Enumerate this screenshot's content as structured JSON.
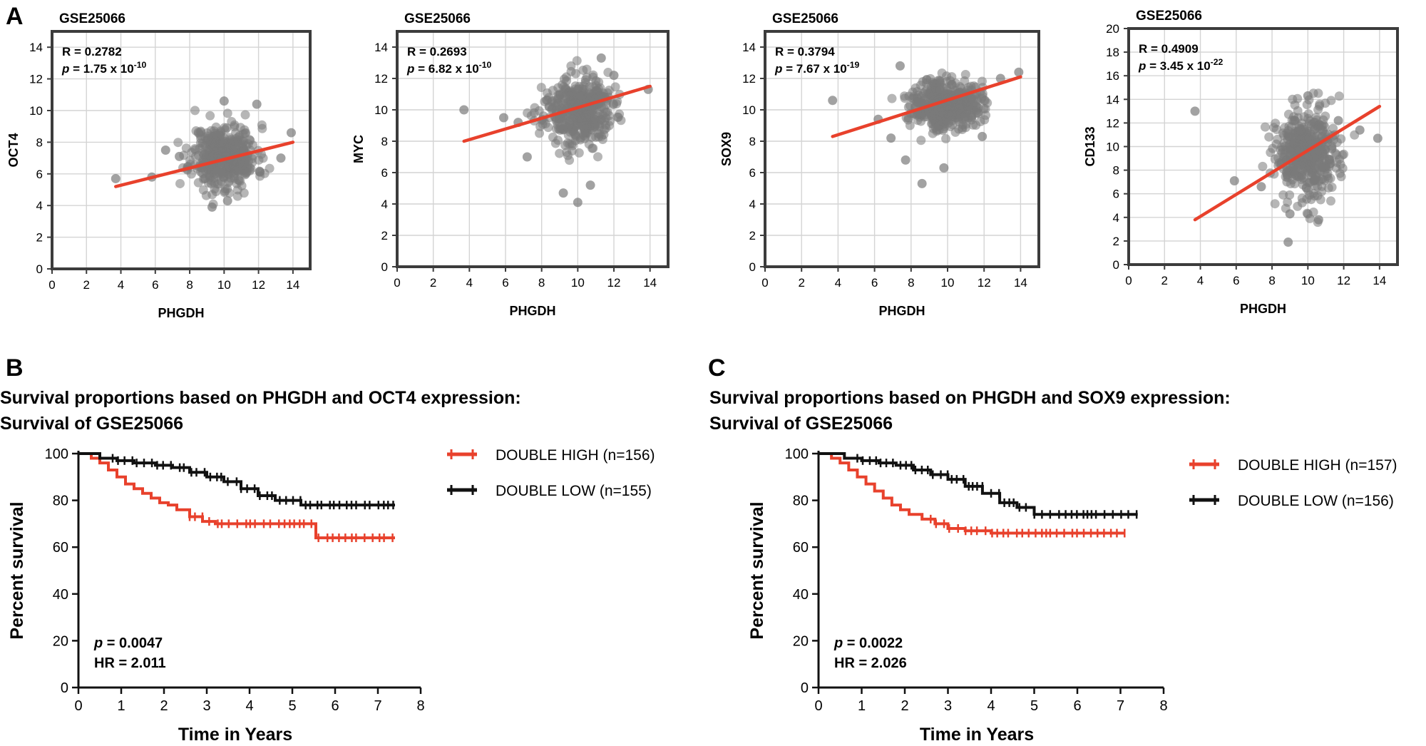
{
  "colors": {
    "red": "#e8412c",
    "black": "#111111",
    "dots": "#7a7a7a",
    "grid": "#d4d4d4",
    "frame": "#3c3c3c"
  },
  "panel_labels": {
    "a": "A",
    "b": "B",
    "c": "C"
  },
  "chart_data": [
    {
      "type": "scatter",
      "id": "a1",
      "title": "GSE25066",
      "xlabel": "PHGDH",
      "ylabel": "OCT4",
      "xlim": [
        0,
        15
      ],
      "ylim": [
        0,
        15
      ],
      "xticks": [
        0,
        2,
        4,
        6,
        8,
        10,
        12,
        14
      ],
      "yticks": [
        0,
        2,
        4,
        6,
        8,
        10,
        12,
        14
      ],
      "stats": {
        "r": "R = 0.2782",
        "p_label": "p",
        "p_text": " = 1.75 x 10",
        "p_exp": "-10"
      },
      "cloud": {
        "x_center": 10.0,
        "y_center": 7.1,
        "x_sd": 0.95,
        "y_sd": 1.0,
        "n": 420,
        "seed": 11
      },
      "outliers": [
        [
          3.7,
          5.7
        ],
        [
          5.8,
          5.8
        ],
        [
          6.6,
          7.5
        ],
        [
          13.9,
          8.6
        ],
        [
          11.9,
          10.4
        ],
        [
          10.0,
          10.6
        ],
        [
          9.3,
          3.9
        ],
        [
          10.2,
          4.3
        ],
        [
          13.3,
          7.0
        ],
        [
          7.4,
          7.1
        ]
      ],
      "fit": {
        "x0": 3.7,
        "y0": 5.2,
        "x1": 14.0,
        "y1": 8.0
      }
    },
    {
      "type": "scatter",
      "id": "a2",
      "title": "GSE25066",
      "xlabel": "PHGDH",
      "ylabel": "MYC",
      "xlim": [
        0,
        15
      ],
      "ylim": [
        0,
        15
      ],
      "xticks": [
        0,
        2,
        4,
        6,
        8,
        10,
        12,
        14
      ],
      "yticks": [
        0,
        2,
        4,
        6,
        8,
        10,
        12,
        14
      ],
      "stats": {
        "r": "R = 0.2693",
        "p_label": "p",
        "p_text": " = 6.82 x 10",
        "p_exp": "-10"
      },
      "cloud": {
        "x_center": 10.0,
        "y_center": 9.9,
        "x_sd": 0.95,
        "y_sd": 1.05,
        "n": 430,
        "seed": 23
      },
      "outliers": [
        [
          3.7,
          10.0
        ],
        [
          5.9,
          9.5
        ],
        [
          6.7,
          9.2
        ],
        [
          13.9,
          11.3
        ],
        [
          10.0,
          4.1
        ],
        [
          9.2,
          4.7
        ],
        [
          10.7,
          5.2
        ],
        [
          11.3,
          13.3
        ],
        [
          7.2,
          7.0
        ],
        [
          12.0,
          12.2
        ]
      ],
      "fit": {
        "x0": 3.7,
        "y0": 8.0,
        "x1": 14.0,
        "y1": 11.5
      }
    },
    {
      "type": "scatter",
      "id": "a3",
      "title": "GSE25066",
      "xlabel": "PHGDH",
      "ylabel": "SOX9",
      "xlim": [
        0,
        15
      ],
      "ylim": [
        0,
        15
      ],
      "xticks": [
        0,
        2,
        4,
        6,
        8,
        10,
        12,
        14
      ],
      "yticks": [
        0,
        2,
        4,
        6,
        8,
        10,
        12,
        14
      ],
      "stats": {
        "r": "R = 0.3794",
        "p_label": "p",
        "p_text": " = 7.67 x 10",
        "p_exp": "-19"
      },
      "cloud": {
        "x_center": 9.9,
        "y_center": 10.4,
        "x_sd": 0.95,
        "y_sd": 0.8,
        "n": 430,
        "seed": 37
      },
      "outliers": [
        [
          3.7,
          10.6
        ],
        [
          6.2,
          9.4
        ],
        [
          7.4,
          12.8
        ],
        [
          13.9,
          12.4
        ],
        [
          8.6,
          5.3
        ],
        [
          9.8,
          6.3
        ],
        [
          11.9,
          8.3
        ],
        [
          7.7,
          6.8
        ],
        [
          12.9,
          12.0
        ],
        [
          6.9,
          8.2
        ]
      ],
      "fit": {
        "x0": 3.7,
        "y0": 8.3,
        "x1": 14.0,
        "y1": 12.1
      }
    },
    {
      "type": "scatter",
      "id": "a4",
      "title": "GSE25066",
      "xlabel": "PHGDH",
      "ylabel": "CD133",
      "xlim": [
        0,
        15
      ],
      "ylim": [
        0,
        20
      ],
      "xticks": [
        0,
        2,
        4,
        6,
        8,
        10,
        12,
        14
      ],
      "yticks": [
        0,
        2,
        4,
        6,
        8,
        10,
        12,
        14,
        16,
        18,
        20
      ],
      "stats": {
        "r": "R = 0.4909",
        "p_label": "p",
        "p_text": " = 3.45 x 10",
        "p_exp": "-22"
      },
      "cloud": {
        "x_center": 10.0,
        "y_center": 9.3,
        "x_sd": 0.95,
        "y_sd": 1.9,
        "n": 440,
        "seed": 53
      },
      "outliers": [
        [
          3.7,
          13.0
        ],
        [
          5.9,
          7.1
        ],
        [
          8.9,
          1.9
        ],
        [
          13.9,
          10.7
        ],
        [
          10.6,
          3.8
        ],
        [
          11.7,
          12.2
        ],
        [
          12.9,
          11.4
        ],
        [
          7.4,
          6.6
        ],
        [
          9.0,
          4.3
        ],
        [
          10.0,
          14.3
        ]
      ],
      "fit": {
        "x0": 3.7,
        "y0": 3.8,
        "x1": 14.0,
        "y1": 13.4
      }
    },
    {
      "type": "line",
      "id": "b",
      "title": "Survival proportions based on PHGDH and OCT4 expression:",
      "subtitle": "Survival of GSE25066",
      "xlabel": "Time in Years",
      "ylabel": "Percent survival",
      "xlim": [
        0,
        8
      ],
      "ylim": [
        0,
        100
      ],
      "xticks": [
        0,
        1,
        2,
        3,
        4,
        5,
        6,
        7,
        8
      ],
      "yticks": [
        0,
        20,
        40,
        60,
        80,
        100
      ],
      "stats": {
        "p_label": "p",
        "p_text": " = 0.0047",
        "hr": "HR = 2.011"
      },
      "series": [
        {
          "name": "DOUBLE HIGH (n=156)",
          "color_key": "red",
          "x": [
            0,
            0.3,
            0.5,
            0.7,
            0.9,
            1.1,
            1.3,
            1.5,
            1.7,
            1.9,
            2.1,
            2.3,
            2.6,
            2.9,
            3.2,
            5.55,
            7.4
          ],
          "y": [
            100,
            98,
            96,
            93,
            90,
            87,
            85,
            83,
            81,
            79,
            78,
            76,
            73,
            71,
            70,
            64,
            64
          ],
          "censor_from": 2.6
        },
        {
          "name": "DOUBLE LOW (n=155)",
          "color_key": "black",
          "x": [
            0,
            0.5,
            0.9,
            1.3,
            1.8,
            2.2,
            2.6,
            3.0,
            3.4,
            3.8,
            4.2,
            4.6,
            5.2,
            7.4
          ],
          "y": [
            100,
            98,
            97,
            96,
            95,
            94,
            92,
            90,
            88,
            85,
            82,
            80,
            78,
            78
          ],
          "censor_from": 0.8
        }
      ]
    },
    {
      "type": "line",
      "id": "c",
      "title": "Survival proportions based on PHGDH and SOX9 expression:",
      "subtitle": "Survival of GSE25066",
      "xlabel": "Time in Years",
      "ylabel": "Percent survival",
      "xlim": [
        0,
        8
      ],
      "ylim": [
        0,
        100
      ],
      "xticks": [
        0,
        1,
        2,
        3,
        4,
        5,
        6,
        7,
        8
      ],
      "yticks": [
        0,
        20,
        40,
        60,
        80,
        100
      ],
      "stats": {
        "p_label": "p",
        "p_text": " = 0.0022",
        "hr": "HR = 2.026"
      },
      "series": [
        {
          "name": "DOUBLE HIGH (n=157)",
          "color_key": "red",
          "x": [
            0,
            0.3,
            0.5,
            0.7,
            0.9,
            1.1,
            1.3,
            1.5,
            1.7,
            1.9,
            2.1,
            2.4,
            2.7,
            3.0,
            3.4,
            4.0,
            7.1
          ],
          "y": [
            100,
            98,
            96,
            93,
            90,
            87,
            84,
            81,
            78,
            76,
            74,
            72,
            70,
            68,
            67,
            66,
            66
          ],
          "censor_from": 2.6
        },
        {
          "name": "DOUBLE LOW (n=156)",
          "color_key": "black",
          "x": [
            0,
            0.6,
            1.0,
            1.4,
            1.8,
            2.2,
            2.6,
            3.0,
            3.4,
            3.8,
            4.2,
            4.6,
            5.0,
            7.4
          ],
          "y": [
            100,
            98,
            97,
            96,
            95,
            93,
            91,
            89,
            86,
            83,
            79,
            77,
            74,
            74
          ],
          "censor_from": 0.9
        }
      ]
    }
  ]
}
